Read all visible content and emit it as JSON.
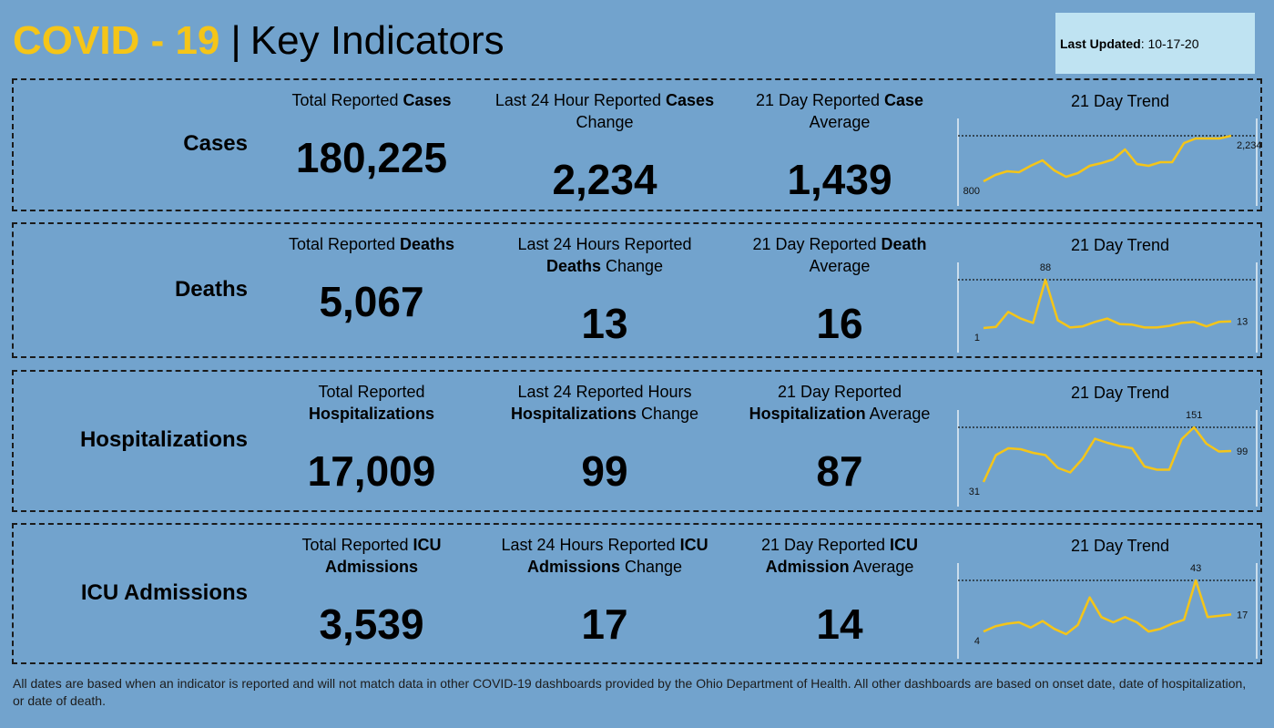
{
  "header": {
    "title_highlight": "COVID - 19",
    "separator": "|",
    "title": "Key Indicators",
    "updated_label": "Last Updated",
    "updated_value": ": 10-17-20"
  },
  "rows": [
    {
      "name": "Cases",
      "metrics": [
        {
          "label": [
            {
              "text": "Total Reported ",
              "bold": false
            },
            {
              "text": "Cases",
              "bold": true
            }
          ],
          "value": "180,225"
        },
        {
          "label": [
            {
              "text": "Last 24 Hour Reported ",
              "bold": false
            },
            {
              "text": "Cases",
              "bold": true
            },
            {
              "text": " Change",
              "bold": false
            }
          ],
          "value": "2,234"
        },
        {
          "label": [
            {
              "text": "21 Day Reported ",
              "bold": false
            },
            {
              "text": "Case",
              "bold": true
            },
            {
              "text": " Average",
              "bold": false
            }
          ],
          "value": "1,439"
        }
      ],
      "trend": {
        "type": "line",
        "title": "21 Day Trend",
        "color": "#f5c518",
        "values": [
          800,
          1001,
          1115,
          1087,
          1288,
          1460,
          1144,
          943,
          1058,
          1288,
          1374,
          1488,
          1804,
          1345,
          1288,
          1402,
          1402,
          2005,
          2148,
          2148,
          2148,
          2234
        ],
        "value_labels": [
          "800",
          null,
          null,
          null,
          null,
          null,
          null,
          null,
          null,
          null,
          null,
          null,
          null,
          null,
          null,
          null,
          null,
          null,
          null,
          null,
          null,
          "2,234"
        ]
      }
    },
    {
      "name": "Deaths",
      "metrics": [
        {
          "label": [
            {
              "text": "Total Reported ",
              "bold": false
            },
            {
              "text": "Deaths",
              "bold": true
            }
          ],
          "value": "5,067"
        },
        {
          "label": [
            {
              "text": "Last 24 Hours Reported ",
              "bold": false
            },
            {
              "text": "Deaths",
              "bold": true
            },
            {
              "text": " Change",
              "bold": false
            }
          ],
          "value": "13"
        },
        {
          "label": [
            {
              "text": "21 Day Reported ",
              "bold": false
            },
            {
              "text": "Death",
              "bold": true
            },
            {
              "text": " Average",
              "bold": false
            }
          ],
          "value": "16"
        }
      ],
      "trend": {
        "type": "line",
        "title": "21 Day Trend",
        "color": "#f5c518",
        "values": [
          1,
          3,
          30,
          18,
          10,
          88,
          15,
          2,
          4,
          12,
          18,
          8,
          7,
          2,
          2,
          5,
          10,
          12,
          4,
          12,
          13
        ],
        "value_labels": [
          "1",
          null,
          null,
          null,
          null,
          "88",
          null,
          null,
          null,
          null,
          null,
          null,
          null,
          null,
          null,
          null,
          null,
          null,
          null,
          null,
          "13"
        ]
      }
    },
    {
      "name": "Hospitalizations",
      "metrics": [
        {
          "label": [
            {
              "text": "Total Reported ",
              "bold": false
            },
            {
              "text": "Hospitalizations",
              "bold": true
            }
          ],
          "value": "17,009"
        },
        {
          "label": [
            {
              "text": "Last 24 Reported Hours ",
              "bold": false
            },
            {
              "text": "Hospitalizations",
              "bold": true
            },
            {
              "text": " Change",
              "bold": false
            }
          ],
          "value": "99"
        },
        {
          "label": [
            {
              "text": "21 Day Reported ",
              "bold": false
            },
            {
              "text": "Hospitalization",
              "bold": true
            },
            {
              "text": " Average",
              "bold": false
            }
          ],
          "value": "87"
        }
      ],
      "trend": {
        "type": "line",
        "title": "21 Day Trend",
        "color": "#f5c518",
        "values": [
          31,
          90,
          105,
          103,
          95,
          90,
          62,
          52,
          82,
          126,
          117,
          110,
          105,
          65,
          58,
          58,
          125,
          151,
          115,
          98,
          99
        ],
        "value_labels": [
          "31",
          null,
          null,
          null,
          null,
          null,
          null,
          null,
          null,
          null,
          null,
          null,
          null,
          null,
          null,
          null,
          null,
          "151",
          null,
          null,
          "99"
        ]
      }
    },
    {
      "name": "ICU Admissions",
      "metrics": [
        {
          "label": [
            {
              "text": "Total Reported ",
              "bold": false
            },
            {
              "text": "ICU Admissions",
              "bold": true
            }
          ],
          "value": "3,539"
        },
        {
          "label": [
            {
              "text": "Last 24 Hours Reported ",
              "bold": false
            },
            {
              "text": "ICU Admissions",
              "bold": true
            },
            {
              "text": " Change",
              "bold": false
            }
          ],
          "value": "17"
        },
        {
          "label": [
            {
              "text": "21 Day Reported ",
              "bold": false
            },
            {
              "text": "ICU Admission",
              "bold": true
            },
            {
              "text": " Average",
              "bold": false
            }
          ],
          "value": "14"
        }
      ],
      "trend": {
        "type": "line",
        "title": "21 Day Trend",
        "color": "#f5c518",
        "values": [
          4,
          8,
          10,
          11,
          7,
          12,
          6,
          2,
          9,
          30,
          15,
          11,
          15,
          11,
          4,
          6,
          10,
          13,
          43,
          15,
          16,
          17
        ],
        "value_labels": [
          "4",
          null,
          null,
          null,
          null,
          null,
          null,
          null,
          null,
          null,
          null,
          null,
          null,
          null,
          null,
          null,
          null,
          null,
          "43",
          null,
          null,
          "17"
        ]
      }
    }
  ],
  "footnote": "All dates are based when an indicator is reported and will not match data in other COVID-19 dashboards provided by the Ohio Department of Health. All other dashboards are based on onset date, date of hospitalization, or date of death."
}
